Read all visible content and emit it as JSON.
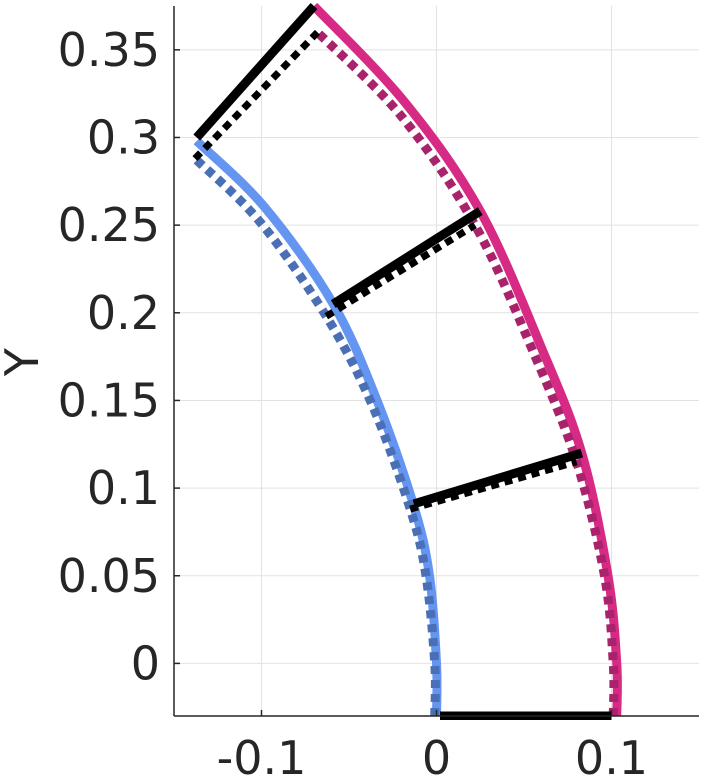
{
  "chart_data": {
    "type": "line",
    "title": "",
    "xlabel": "",
    "ylabel": "Y",
    "xlim": [
      -0.15,
      0.15
    ],
    "ylim": [
      -0.03,
      0.375
    ],
    "grid": true,
    "x_ticks": [
      {
        "value": -0.1,
        "label": "-0.1"
      },
      {
        "value": 0,
        "label": "0"
      },
      {
        "value": 0.1,
        "label": "0.1"
      }
    ],
    "y_ticks": [
      {
        "value": 0,
        "label": "0"
      },
      {
        "value": 0.05,
        "label": "0.05"
      },
      {
        "value": 0.1,
        "label": "0.1"
      },
      {
        "value": 0.15,
        "label": "0.15"
      },
      {
        "value": 0.2,
        "label": "0.2"
      },
      {
        "value": 0.25,
        "label": "0.25"
      },
      {
        "value": 0.3,
        "label": "0.3"
      },
      {
        "value": 0.35,
        "label": "0.35"
      }
    ],
    "series": [
      {
        "color": "#6495f0",
        "style": "solid",
        "points": [
          [
            0.0,
            -0.03
          ],
          [
            0.0,
            0.0
          ],
          [
            -0.004,
            0.05
          ],
          [
            -0.013,
            0.09
          ],
          [
            -0.034,
            0.15
          ],
          [
            -0.059,
            0.205
          ],
          [
            -0.098,
            0.26
          ],
          [
            -0.137,
            0.298
          ]
        ]
      },
      {
        "color": "#4a6fb5",
        "style": "dotted",
        "points": [
          [
            -0.001,
            -0.03
          ],
          [
            -0.001,
            0.0
          ],
          [
            -0.006,
            0.05
          ],
          [
            -0.015,
            0.088
          ],
          [
            -0.037,
            0.148
          ],
          [
            -0.063,
            0.198
          ],
          [
            -0.101,
            0.252
          ],
          [
            -0.138,
            0.288
          ]
        ]
      },
      {
        "color": "#d62a84",
        "style": "solid",
        "points": [
          [
            0.103,
            -0.03
          ],
          [
            0.103,
            0.0
          ],
          [
            0.098,
            0.05
          ],
          [
            0.083,
            0.12
          ],
          [
            0.06,
            0.18
          ],
          [
            0.025,
            0.258
          ],
          [
            -0.018,
            0.32
          ],
          [
            -0.07,
            0.375
          ]
        ]
      },
      {
        "color": "#a8236b",
        "style": "dotted",
        "points": [
          [
            0.101,
            -0.03
          ],
          [
            0.101,
            0.0
          ],
          [
            0.096,
            0.05
          ],
          [
            0.08,
            0.115
          ],
          [
            0.056,
            0.176
          ],
          [
            0.022,
            0.25
          ],
          [
            -0.02,
            0.312
          ],
          [
            -0.068,
            0.36
          ]
        ]
      },
      {
        "color": "#000000",
        "style": "solid",
        "points": [
          [
            0.002,
            -0.03
          ],
          [
            0.1,
            -0.03
          ]
        ]
      },
      {
        "color": "#000000",
        "style": "solid",
        "points": [
          [
            -0.013,
            0.091
          ],
          [
            0.083,
            0.12
          ]
        ]
      },
      {
        "color": "#000000",
        "style": "solid",
        "points": [
          [
            -0.059,
            0.205
          ],
          [
            0.025,
            0.258
          ]
        ]
      },
      {
        "color": "#000000",
        "style": "solid",
        "points": [
          [
            -0.137,
            0.3
          ],
          [
            -0.07,
            0.375
          ]
        ]
      },
      {
        "color": "#000000",
        "style": "dotted",
        "points": [
          [
            -0.015,
            0.088
          ],
          [
            0.08,
            0.115
          ]
        ]
      },
      {
        "color": "#000000",
        "style": "dotted",
        "points": [
          [
            -0.063,
            0.198
          ],
          [
            0.022,
            0.25
          ]
        ]
      },
      {
        "color": "#000000",
        "style": "dotted",
        "points": [
          [
            -0.138,
            0.288
          ],
          [
            -0.068,
            0.36
          ]
        ]
      }
    ]
  }
}
